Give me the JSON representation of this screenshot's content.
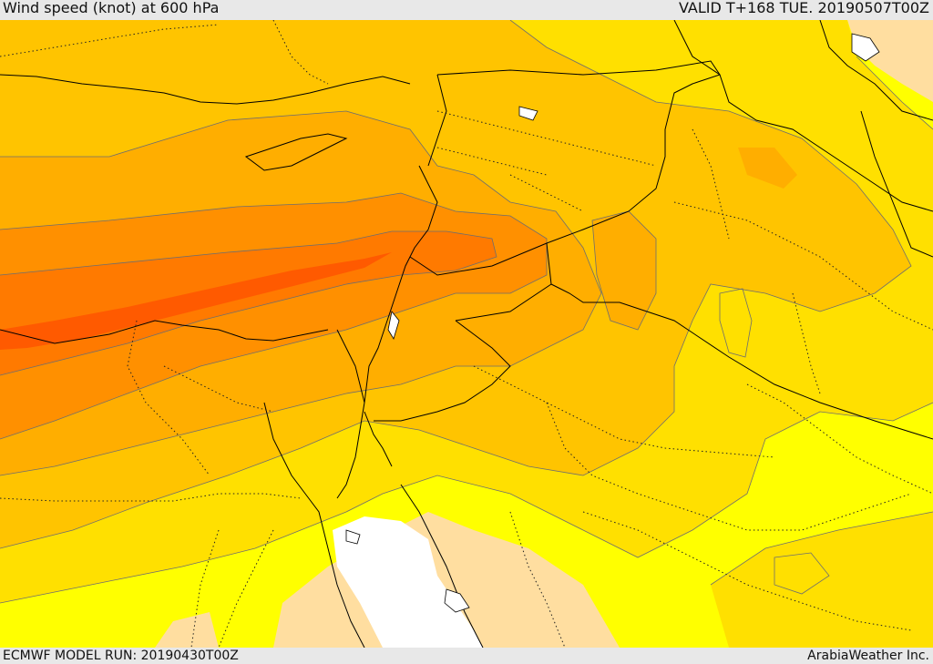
{
  "header": {
    "title": "Wind speed (knot) at 600 hPa",
    "valid": "VALID T+168 TUE. 20190507T00Z"
  },
  "footer": {
    "model_run": "ECMWF MODEL RUN: 20190430T00Z",
    "credit": "ArabiaWeather Inc."
  },
  "colors": {
    "lightest": "#ffdea0",
    "white": "#ffffff",
    "yellow": "#ffff00",
    "gold": "#ffe000",
    "amber": "#ffc400",
    "orange_light": "#ffae00",
    "orange": "#ff9000",
    "orange_dark": "#ff7a00",
    "red_orange": "#ff5a00"
  }
}
